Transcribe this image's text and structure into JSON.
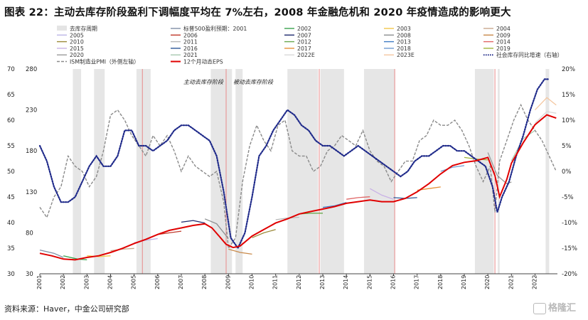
{
  "title": "图表 22：主动去库存阶段盈利下调幅度平均在 7%左右，2008 年金融危机和 2020 年疫情造成的影响更大",
  "source": "资料来源：Haver，中金公司研究部",
  "watermark": "格隆汇",
  "chart_data": {
    "type": "line",
    "x_labels": [
      "2001",
      "2002",
      "2003",
      "2004",
      "2005",
      "2006",
      "2007",
      "2008",
      "2009",
      "2010",
      "2011",
      "2012",
      "2013",
      "2014",
      "2015",
      "2016",
      "2017",
      "2018",
      "2019",
      "2020",
      "2021",
      "2022"
    ],
    "y_left_outer": {
      "label": "ISM制造业PMI（外侧左轴）",
      "range": [
        30,
        70
      ],
      "ticks": [
        30,
        35,
        40,
        45,
        50,
        55,
        60,
        65,
        70
      ]
    },
    "y_left_inner": {
      "label": "标普500盈利预期 / 12个月动态EPS",
      "range": [
        30,
        280
      ],
      "ticks": [
        30,
        80,
        130,
        180,
        230,
        280
      ]
    },
    "y_right": {
      "label": "社会库存同比增速（右轴）",
      "range": [
        -20,
        20
      ],
      "ticks": [
        "-20%",
        "-15%",
        "-10%",
        "-5%",
        "0%",
        "5%",
        "10%",
        "15%",
        "20%"
      ]
    },
    "annotations": [
      "主动去库存阶段",
      "被动去库存阶段"
    ],
    "legend": [
      {
        "name": "去库存周期",
        "color": "#e4e4e4",
        "style": "box"
      },
      {
        "name": "标普500盈利预期：2001",
        "color": "#7f8fa6",
        "style": "line"
      },
      {
        "name": "2002",
        "color": "#3aa34e",
        "style": "line"
      },
      {
        "name": "2003",
        "color": "#f2c84b",
        "style": "line"
      },
      {
        "name": "2004",
        "color": "#c9a98e",
        "style": "line"
      },
      {
        "name": "2005",
        "color": "#bdb6e6",
        "style": "line"
      },
      {
        "name": "2006",
        "color": "#c0392b",
        "style": "line"
      },
      {
        "name": "2007",
        "color": "#1f2a6e",
        "style": "line"
      },
      {
        "name": "2008",
        "color": "#8c8f91",
        "style": "line"
      },
      {
        "name": "2009",
        "color": "#c98a4b",
        "style": "line"
      },
      {
        "name": "2010",
        "color": "#9c8a3a",
        "style": "line"
      },
      {
        "name": "2011",
        "color": "#b8b8b8",
        "style": "line"
      },
      {
        "name": "2012",
        "color": "#6aa84f",
        "style": "line"
      },
      {
        "name": "2013",
        "color": "#3f7cc4",
        "style": "line"
      },
      {
        "name": "2014",
        "color": "#e06666",
        "style": "line"
      },
      {
        "name": "2015",
        "color": "#c9b2e6",
        "style": "line"
      },
      {
        "name": "2016",
        "color": "#2b5797",
        "style": "line"
      },
      {
        "name": "2017",
        "color": "#e69138",
        "style": "line"
      },
      {
        "name": "2018",
        "color": "#6f9bd1",
        "style": "line"
      },
      {
        "name": "2019",
        "color": "#a0b43c",
        "style": "line"
      },
      {
        "name": "2020",
        "color": "#9b9b9b",
        "style": "line"
      },
      {
        "name": "2021",
        "color": "#a8c9b0",
        "style": "line"
      },
      {
        "name": "2022E",
        "color": "#d9d9d9",
        "style": "line"
      },
      {
        "name": "2023E",
        "color": "#f4c7a1",
        "style": "line"
      },
      {
        "name": "社会库存同比增速（右轴）",
        "color": "#1f2a8a",
        "style": "dotted"
      },
      {
        "name": "ISM制造业PMI（外侧左轴）",
        "color": "#8a8a8a",
        "style": "dashed"
      },
      {
        "name": "12个月动态EPS",
        "color": "#e00000",
        "style": "line"
      }
    ],
    "shaded_periods": [
      [
        2002.4,
        2002.75
      ],
      [
        2003.3,
        2003.75
      ],
      [
        2005.1,
        2005.7
      ],
      [
        2008.25,
        2009.15
      ],
      [
        2009.3,
        2009.6
      ],
      [
        2011.5,
        2012.8
      ],
      [
        2012.9,
        2013.9
      ],
      [
        2014.75,
        2016.05
      ],
      [
        2019.45,
        2020.25
      ],
      [
        2020.42,
        2020.5
      ],
      [
        2022.45,
        2022.6
      ]
    ],
    "red_markers": [
      2005.35,
      2008.9,
      2012.85,
      2016.05,
      2020.3
    ],
    "eps_series": {
      "name": "12个月动态EPS",
      "x": [
        2001.0,
        2001.5,
        2002.0,
        2002.5,
        2003.0,
        2003.5,
        2004.0,
        2004.5,
        2005.0,
        2005.5,
        2006.0,
        2006.5,
        2007.0,
        2007.5,
        2008.0,
        2008.3,
        2008.6,
        2008.9,
        2009.2,
        2009.5,
        2010.0,
        2010.5,
        2011.0,
        2011.5,
        2012.0,
        2012.5,
        2013.0,
        2013.5,
        2014.0,
        2014.5,
        2015.0,
        2015.5,
        2016.0,
        2016.5,
        2017.0,
        2017.5,
        2018.0,
        2018.5,
        2019.0,
        2019.5,
        2020.0,
        2020.3,
        2020.5,
        2020.8,
        2021.0,
        2021.5,
        2022.0,
        2022.5,
        2022.9
      ],
      "y": [
        55,
        52,
        48,
        47,
        50,
        52,
        56,
        61,
        67,
        72,
        78,
        83,
        86,
        89,
        91,
        86,
        76,
        66,
        62,
        64,
        76,
        84,
        92,
        97,
        103,
        106,
        109,
        112,
        116,
        118,
        120,
        118,
        118,
        122,
        130,
        140,
        152,
        162,
        166,
        168,
        172,
        150,
        124,
        145,
        165,
        190,
        212,
        224,
        220
      ]
    },
    "inventory_series": {
      "name": "社会库存同比增速（右轴）",
      "x": [
        2001.0,
        2001.3,
        2001.6,
        2001.9,
        2002.2,
        2002.5,
        2002.8,
        2003.1,
        2003.4,
        2003.7,
        2004.0,
        2004.3,
        2004.6,
        2004.9,
        2005.2,
        2005.5,
        2005.8,
        2006.1,
        2006.4,
        2006.7,
        2007.0,
        2007.3,
        2007.6,
        2007.9,
        2008.2,
        2008.5,
        2008.8,
        2009.1,
        2009.4,
        2009.7,
        2010.0,
        2010.3,
        2010.6,
        2010.9,
        2011.2,
        2011.5,
        2011.8,
        2012.1,
        2012.4,
        2012.7,
        2013.0,
        2013.3,
        2013.6,
        2013.9,
        2014.2,
        2014.5,
        2014.8,
        2015.1,
        2015.4,
        2015.7,
        2016.0,
        2016.3,
        2016.6,
        2016.9,
        2017.2,
        2017.5,
        2017.8,
        2018.1,
        2018.4,
        2018.7,
        2019.0,
        2019.3,
        2019.6,
        2019.9,
        2020.2,
        2020.4,
        2020.6,
        2020.9,
        2021.2,
        2021.5,
        2021.8,
        2022.1,
        2022.4,
        2022.6
      ],
      "y": [
        5,
        2,
        -3,
        -6,
        -6,
        -5,
        -2,
        1,
        3,
        1,
        1,
        3,
        8,
        8,
        5,
        5,
        4,
        5,
        6,
        8,
        9,
        9,
        8,
        7,
        6,
        3,
        -4,
        -13,
        -15,
        -12,
        -5,
        3,
        5,
        8,
        10,
        12,
        11,
        9,
        8,
        6,
        5,
        5,
        4,
        3,
        4,
        5,
        4,
        3,
        2,
        1,
        0,
        -1,
        0,
        2,
        3,
        3,
        4,
        5,
        5,
        4,
        4,
        3,
        2,
        1,
        -3,
        -8,
        -5,
        -2,
        3,
        7,
        12,
        16,
        18,
        18
      ]
    },
    "pmi_series": {
      "name": "ISM制造业PMI（外侧左轴）",
      "x": [
        2001.0,
        2001.3,
        2001.6,
        2001.9,
        2002.2,
        2002.5,
        2002.8,
        2003.1,
        2003.4,
        2003.7,
        2004.0,
        2004.3,
        2004.6,
        2004.9,
        2005.2,
        2005.5,
        2005.8,
        2006.1,
        2006.4,
        2006.7,
        2007.0,
        2007.3,
        2007.6,
        2007.9,
        2008.2,
        2008.5,
        2008.8,
        2009.0,
        2009.3,
        2009.6,
        2009.9,
        2010.2,
        2010.5,
        2010.8,
        2011.1,
        2011.4,
        2011.7,
        2012.0,
        2012.3,
        2012.6,
        2012.9,
        2013.2,
        2013.5,
        2013.8,
        2014.1,
        2014.4,
        2014.7,
        2015.0,
        2015.3,
        2015.6,
        2015.9,
        2016.2,
        2016.5,
        2016.8,
        2017.1,
        2017.4,
        2017.7,
        2018.0,
        2018.3,
        2018.6,
        2018.9,
        2019.2,
        2019.5,
        2019.8,
        2020.1,
        2020.3,
        2020.5,
        2020.8,
        2021.1,
        2021.4,
        2021.7,
        2022.0,
        2022.3,
        2022.6,
        2022.9
      ],
      "y": [
        43,
        41,
        45,
        47,
        53,
        51,
        50,
        47,
        49,
        54,
        61,
        62,
        60,
        57,
        55,
        53,
        57,
        55,
        57,
        54,
        50,
        53,
        51,
        50,
        49,
        50,
        44,
        35,
        37,
        48,
        55,
        59,
        56,
        54,
        59,
        60,
        54,
        53,
        53,
        50,
        51,
        54,
        55,
        57,
        56,
        55,
        58,
        54,
        52,
        51,
        48,
        50,
        52,
        52,
        56,
        57,
        60,
        59,
        59,
        60,
        58,
        55,
        51,
        48,
        51,
        42,
        52,
        56,
        60,
        63,
        60,
        58,
        56,
        53,
        50
      ]
    },
    "annual_series": [
      {
        "name": "标普500盈利预期：2001",
        "color": "#7f8fa6",
        "x": [
          2001.0,
          2001.6,
          2002.0
        ],
        "y": [
          59,
          55,
          50
        ]
      },
      {
        "name": "2002",
        "color": "#3aa34e",
        "x": [
          2002.0,
          2002.6,
          2003.0
        ],
        "y": [
          52,
          48,
          47
        ]
      },
      {
        "name": "2003",
        "color": "#f2c84b",
        "x": [
          2003.0,
          2003.5,
          2004.0
        ],
        "y": [
          52,
          51,
          52
        ]
      },
      {
        "name": "2004",
        "color": "#c9a98e",
        "x": [
          2004.0,
          2004.5,
          2005.0
        ],
        "y": [
          58,
          60,
          61
        ]
      },
      {
        "name": "2005",
        "color": "#bdb6e6",
        "x": [
          2005.0,
          2005.5,
          2006.0
        ],
        "y": [
          68,
          71,
          73
        ]
      },
      {
        "name": "2006",
        "color": "#c0392b",
        "x": [
          2006.0,
          2006.5,
          2007.0
        ],
        "y": [
          78,
          80,
          82
        ]
      },
      {
        "name": "2007",
        "color": "#1f2a6e",
        "x": [
          2007.0,
          2007.5,
          2008.0
        ],
        "y": [
          93,
          95,
          92
        ]
      },
      {
        "name": "2008",
        "color": "#8c8f91",
        "x": [
          2008.0,
          2008.5,
          2009.0
        ],
        "y": [
          97,
          91,
          73
        ]
      },
      {
        "name": "2009",
        "color": "#c98a4b",
        "x": [
          2009.0,
          2009.5,
          2010.0
        ],
        "y": [
          60,
          56,
          54
        ]
      },
      {
        "name": "2010",
        "color": "#9c8a3a",
        "x": [
          2010.0,
          2010.5,
          2011.0
        ],
        "y": [
          74,
          80,
          84
        ]
      },
      {
        "name": "2011",
        "color": "#b8b8b8",
        "x": [
          2011.0,
          2011.5,
          2012.0
        ],
        "y": [
          96,
          98,
          99
        ]
      },
      {
        "name": "2012",
        "color": "#6aa84f",
        "x": [
          2012.0,
          2012.5,
          2013.0
        ],
        "y": [
          103,
          104,
          104
        ]
      },
      {
        "name": "2013",
        "color": "#3f7cc4",
        "x": [
          2013.0,
          2013.5,
          2014.0
        ],
        "y": [
          111,
          113,
          117
        ]
      },
      {
        "name": "2014",
        "color": "#e06666",
        "x": [
          2014.0,
          2014.5,
          2015.0
        ],
        "y": [
          121,
          123,
          124
        ]
      },
      {
        "name": "2015",
        "color": "#c9b2e6",
        "x": [
          2015.0,
          2015.5,
          2016.0
        ],
        "y": [
          134,
          126,
          121
        ]
      },
      {
        "name": "2016",
        "color": "#2b5797",
        "x": [
          2016.0,
          2016.5,
          2017.0
        ],
        "y": [
          123,
          122,
          123
        ]
      },
      {
        "name": "2017",
        "color": "#e69138",
        "x": [
          2017.0,
          2017.5,
          2018.0
        ],
        "y": [
          132,
          134,
          136
        ]
      },
      {
        "name": "2018",
        "color": "#6f9bd1",
        "x": [
          2018.0,
          2018.5,
          2019.0
        ],
        "y": [
          155,
          160,
          162
        ]
      },
      {
        "name": "2019",
        "color": "#a0b43c",
        "x": [
          2019.0,
          2019.5,
          2020.0
        ],
        "y": [
          172,
          170,
          169
        ]
      },
      {
        "name": "2020",
        "color": "#9b9b9b",
        "x": [
          2020.0,
          2020.4,
          2020.8,
          2021.0
        ],
        "y": [
          178,
          150,
          140,
          142
        ]
      },
      {
        "name": "2021",
        "color": "#a8c9b0",
        "x": [
          2021.0,
          2021.5,
          2022.0
        ],
        "y": [
          168,
          195,
          205
        ]
      },
      {
        "name": "2022E",
        "color": "#d9d9d9",
        "x": [
          2022.0,
          2022.5,
          2022.9
        ],
        "y": [
          214,
          228,
          226
        ]
      },
      {
        "name": "2023E",
        "color": "#f4c7a1",
        "x": [
          2022.0,
          2022.5,
          2022.9
        ],
        "y": [
          230,
          245,
          236
        ]
      }
    ]
  }
}
